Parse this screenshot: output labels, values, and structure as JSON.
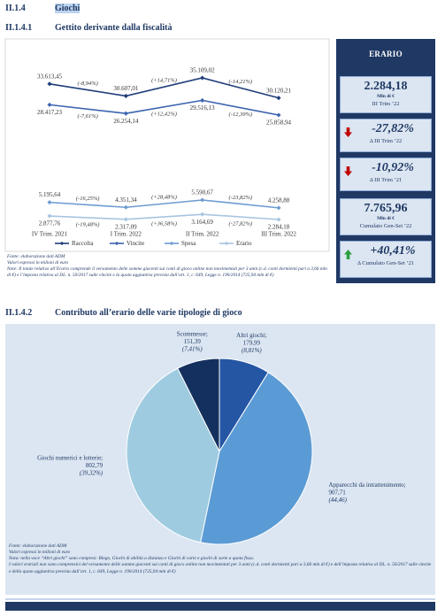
{
  "header": {
    "number": "II.1.4",
    "title": "Giochi"
  },
  "section1": {
    "number": "II.1.4.1",
    "title": "Gettito derivante dalla fiscalità"
  },
  "section2": {
    "number": "II.1.4.2",
    "title": "Contributo all’erario delle varie tipologie di gioco"
  },
  "chart_data": [
    {
      "type": "line",
      "categories": [
        "IV Trim. 2021",
        "I Trim. 2022",
        "II Trim. 2022",
        "III Trim. 2022"
      ],
      "series": [
        {
          "name": "Raccolta",
          "color": "#1f3d7a",
          "values": [
            33613.45,
            30607.01,
            35109.02,
            30120.21
          ],
          "value_labels": [
            "33.613,45",
            "30.607,01",
            "35.109,02",
            "30.120,21"
          ],
          "change_labels": [
            "(-8,94%)",
            "(+14,71%)",
            "(-14,21%)"
          ]
        },
        {
          "name": "Vincite",
          "color": "#3b63b0",
          "values": [
            28417.23,
            26254.14,
            29516.13,
            25858.94
          ],
          "value_labels": [
            "28.417,23",
            "26.254,14",
            "29.516,13",
            "25.858,94"
          ],
          "change_labels": [
            "(-7,61%)",
            "(+12,42%)",
            "(-12,39%)"
          ]
        },
        {
          "name": "Spesa",
          "color": "#6c9bd2",
          "values": [
            5195.64,
            4351.34,
            5590.67,
            4258.88
          ],
          "value_labels": [
            "5.195,64",
            "4.351,34",
            "5.590,67",
            "4.258,88"
          ],
          "change_labels": [
            "(-16,25%)",
            "(+28,48%)",
            "(-23,82%)"
          ]
        },
        {
          "name": "Erario",
          "color": "#a8c4e0",
          "values": [
            2877.76,
            2317.09,
            3164.69,
            2284.18
          ],
          "value_labels": [
            "2.877,76",
            "2.317,09",
            "3.164,69",
            "2.284,18"
          ],
          "change_labels": [
            "(-19,48%)",
            "(+36,58%)",
            "(-27,82%)"
          ]
        }
      ],
      "legend": "bottom"
    },
    {
      "type": "pie",
      "categories": [
        "Altri giochi;",
        "Apparecchi da intrattenimento;",
        "Giochi numerici e lotterie;",
        "Scommesse;"
      ],
      "values": [
        179.99,
        907.71,
        802.79,
        151.39
      ],
      "value_labels": [
        "179,99",
        "907,71",
        "802,79",
        "151,39"
      ],
      "share_labels": [
        "(8,81%)",
        "(44,46)",
        "(39,32%)",
        "(7,41%)"
      ],
      "colors": [
        "#2456a4",
        "#5b9bd5",
        "#9fcbe0",
        "#14305e"
      ]
    }
  ],
  "notes1": [
    "Fonte: elaborazione dati ADM",
    "Valori espressi in milioni di euro",
    "Note: Il totale relativo all’Erario comprende il versamento delle somme giacenti sui conti di gioco online non movimentati per 3 anni (c.d. conti dormienti pari a 3,66 mln di €) e l’imposta relativa al DL. n. 50/2017 sulle vincite e la quota aggiuntiva prevista dall’art. 1, c. 649, Legge n. 190/2014 (725,94 mln di €)"
  ],
  "kpi_title": "ERARIO",
  "kpis": [
    {
      "value": "2.284,18",
      "unit": "Mln di €",
      "label": "III Trim ’22"
    },
    {
      "value": "-27,82%",
      "label": "Δ III Trim ’22",
      "trend": "down"
    },
    {
      "value": "-10,92%",
      "label": "Δ III Trim ’21",
      "trend": "down"
    },
    {
      "value": "7.765,96",
      "unit": "Mln di €",
      "label": "Cumulato Gen-Set ’22"
    },
    {
      "value": "+40,41%",
      "label": "Δ Cumulato Gen-Set ’21",
      "trend": "up"
    }
  ],
  "notes2": [
    "Fonte: elaborazione dati ADM",
    "Valori espressi in milioni di euro",
    "Nota: nella voce “Altri giochi” sono compresi: Bingo, Giochi di abilità a distanza e Giochi di carte e giochi di sorte a quota fissa.",
    "I valori erariali non sono comprensivi del versamento delle somme giacenti sui conti di gioco online non movimentati per 3 anni (c.d. conti dormienti pari a 3,66 mln di €) e dell’imposta relativa al DL. n. 50/2017 sulle vincite e della quota aggiuntiva prevista dall’art. 1, c. 649, Legge n. 190/2014 (725,94 mln di €)"
  ]
}
